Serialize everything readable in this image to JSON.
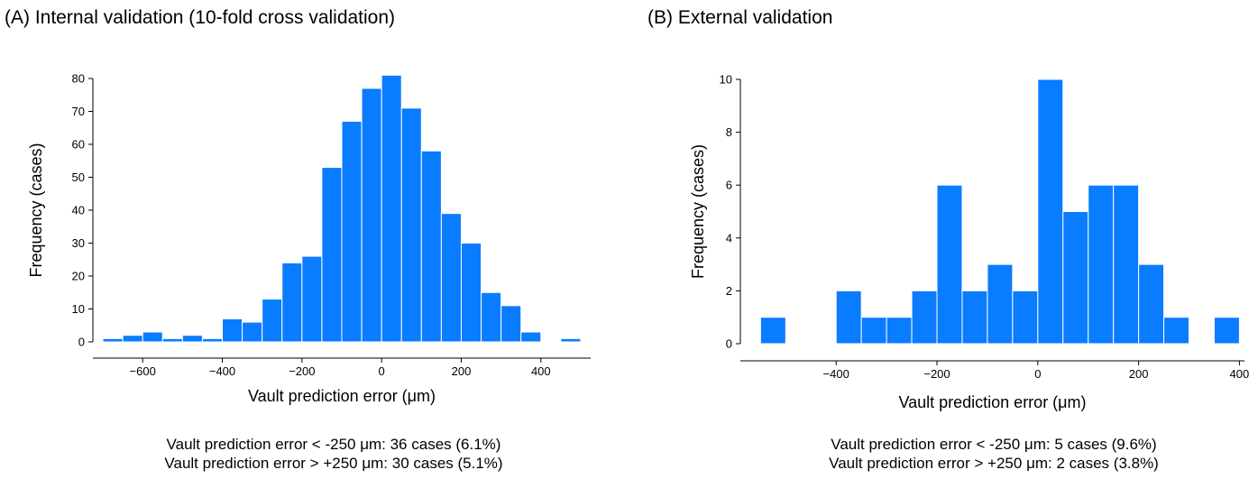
{
  "chart_data": [
    {
      "type": "bar",
      "panel_title": "(A) Internal validation (10-fold cross validation)",
      "xlabel": "Vault prediction error (μm)",
      "ylabel": "Frequency (cases)",
      "xlim": [
        -725,
        525
      ],
      "ylim": [
        0,
        80
      ],
      "bin_width": 50,
      "xticks": [
        -600,
        -400,
        -200,
        0,
        200,
        400
      ],
      "yticks": [
        0,
        10,
        20,
        30,
        40,
        50,
        60,
        70,
        80
      ],
      "bins": [
        {
          "x0": -700,
          "x1": -650,
          "value": 1
        },
        {
          "x0": -650,
          "x1": -600,
          "value": 2
        },
        {
          "x0": -600,
          "x1": -550,
          "value": 3
        },
        {
          "x0": -550,
          "x1": -500,
          "value": 1
        },
        {
          "x0": -500,
          "x1": -450,
          "value": 2
        },
        {
          "x0": -450,
          "x1": -400,
          "value": 1
        },
        {
          "x0": -400,
          "x1": -350,
          "value": 7
        },
        {
          "x0": -350,
          "x1": -300,
          "value": 6
        },
        {
          "x0": -300,
          "x1": -250,
          "value": 13
        },
        {
          "x0": -250,
          "x1": -200,
          "value": 24
        },
        {
          "x0": -200,
          "x1": -150,
          "value": 26
        },
        {
          "x0": -150,
          "x1": -100,
          "value": 53
        },
        {
          "x0": -100,
          "x1": -50,
          "value": 67
        },
        {
          "x0": -50,
          "x1": 0,
          "value": 77
        },
        {
          "x0": 0,
          "x1": 50,
          "value": 81
        },
        {
          "x0": 50,
          "x1": 100,
          "value": 71
        },
        {
          "x0": 100,
          "x1": 150,
          "value": 58
        },
        {
          "x0": 150,
          "x1": 200,
          "value": 39
        },
        {
          "x0": 200,
          "x1": 250,
          "value": 30
        },
        {
          "x0": 250,
          "x1": 300,
          "value": 15
        },
        {
          "x0": 300,
          "x1": 350,
          "value": 11
        },
        {
          "x0": 350,
          "x1": 400,
          "value": 3
        },
        {
          "x0": 450,
          "x1": 500,
          "value": 1
        }
      ],
      "bar_color": "#0a7cff",
      "notes": [
        "Vault prediction error < -250 μm: 36 cases (6.1%)",
        "Vault prediction error > +250 μm: 30 cases (5.1%)"
      ]
    },
    {
      "type": "bar",
      "panel_title": "(B) External validation",
      "xlabel": "Vault prediction error (μm)",
      "ylabel": "Frequency (cases)",
      "xlim": [
        -590,
        410
      ],
      "ylim": [
        0,
        10
      ],
      "bin_width": 50,
      "xticks": [
        -400,
        -200,
        0,
        200,
        400
      ],
      "yticks": [
        0,
        2,
        4,
        6,
        8,
        10
      ],
      "bins": [
        {
          "x0": -550,
          "x1": -500,
          "value": 1
        },
        {
          "x0": -400,
          "x1": -350,
          "value": 2
        },
        {
          "x0": -350,
          "x1": -300,
          "value": 1
        },
        {
          "x0": -300,
          "x1": -250,
          "value": 1
        },
        {
          "x0": -250,
          "x1": -200,
          "value": 2
        },
        {
          "x0": -200,
          "x1": -150,
          "value": 6
        },
        {
          "x0": -150,
          "x1": -100,
          "value": 2
        },
        {
          "x0": -100,
          "x1": -50,
          "value": 3
        },
        {
          "x0": -50,
          "x1": 0,
          "value": 2
        },
        {
          "x0": 0,
          "x1": 50,
          "value": 10
        },
        {
          "x0": 50,
          "x1": 100,
          "value": 5
        },
        {
          "x0": 100,
          "x1": 150,
          "value": 6
        },
        {
          "x0": 150,
          "x1": 200,
          "value": 6
        },
        {
          "x0": 200,
          "x1": 250,
          "value": 3
        },
        {
          "x0": 250,
          "x1": 300,
          "value": 1
        },
        {
          "x0": 350,
          "x1": 400,
          "value": 1
        }
      ],
      "bar_color": "#0a7cff",
      "notes": [
        "Vault prediction error < -250 μm: 5 cases (9.6%)",
        "Vault prediction error > +250 μm: 2 cases (3.8%)"
      ]
    }
  ]
}
